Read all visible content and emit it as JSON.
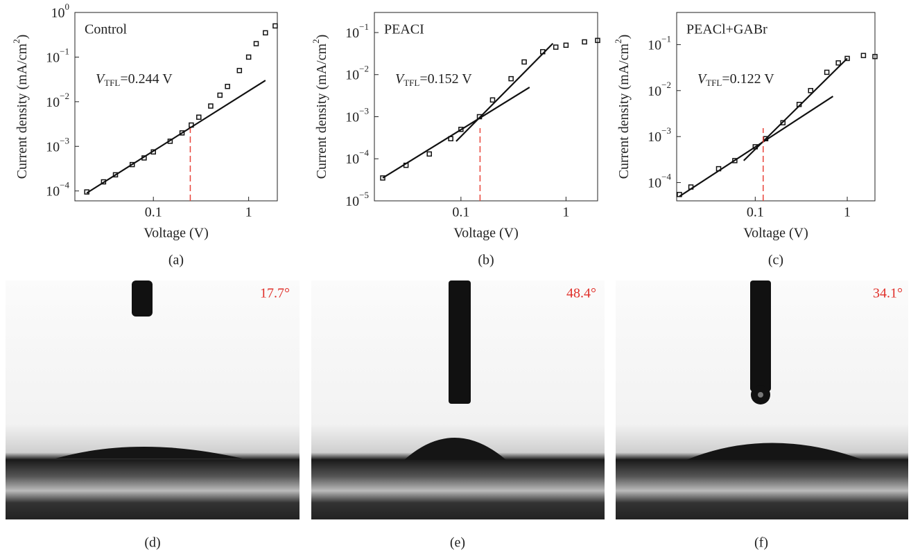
{
  "chart_data": [
    {
      "type": "scatter",
      "title": "Control",
      "log_x": true,
      "log_y": true,
      "xlabel": "Voltage (V)",
      "ylabel": [
        "Current density (mA/cm",
        "2",
        ")"
      ],
      "panel": "(a)",
      "annotation": {
        "symbol": "V",
        "sub": "TFL",
        "text": "=0.244 V"
      },
      "vtfl": 0.244,
      "vtfl_color": "#e8443a",
      "xlim": [
        0.015,
        2
      ],
      "ylim": [
        6e-05,
        1
      ],
      "xticks": [
        0.1,
        1
      ],
      "yticks": [
        {
          "value": 0.0001,
          "label": [
            "10",
            "−4"
          ]
        },
        {
          "value": 0.001,
          "label": [
            "10",
            "−3"
          ]
        },
        {
          "value": 0.01,
          "label": [
            "10",
            "−2"
          ]
        },
        {
          "value": 0.1,
          "label": [
            "10",
            "−1"
          ]
        },
        {
          "value": 1,
          "label": [
            "10",
            "0"
          ]
        }
      ],
      "series": [
        {
          "style": "markers",
          "color": "#111",
          "x": [
            0.02,
            0.03,
            0.04,
            0.06,
            0.08,
            0.1,
            0.15,
            0.2,
            0.25,
            0.3,
            0.4,
            0.5,
            0.6,
            0.8,
            1,
            1.2,
            1.5,
            1.9
          ],
          "values": [
            9.5e-05,
            0.00016,
            0.00023,
            0.00039,
            0.00055,
            0.00075,
            0.0013,
            0.002,
            0.003,
            0.0045,
            0.008,
            0.014,
            0.022,
            0.05,
            0.1,
            0.2,
            0.35,
            0.5
          ]
        },
        {
          "style": "line",
          "color": "#111",
          "x": [
            0.02,
            1.5
          ],
          "values": [
            9e-05,
            0.03
          ]
        }
      ]
    },
    {
      "type": "scatter",
      "title": "PEACI",
      "log_x": true,
      "log_y": true,
      "xlabel": "Voltage (V)",
      "ylabel": [
        "Current density (mA/cm",
        "2",
        ")"
      ],
      "panel": "(b)",
      "annotation": {
        "symbol": "V",
        "sub": "TFL",
        "text": "=0.152 V"
      },
      "vtfl": 0.152,
      "vtfl_color": "#e8443a",
      "xlim": [
        0.015,
        2
      ],
      "ylim": [
        1e-05,
        0.3
      ],
      "xticks": [
        0.1,
        1
      ],
      "yticks": [
        {
          "value": 1e-05,
          "label": [
            "10",
            "−5"
          ]
        },
        {
          "value": 0.0001,
          "label": [
            "10",
            "−4"
          ]
        },
        {
          "value": 0.001,
          "label": [
            "10",
            "−3"
          ]
        },
        {
          "value": 0.01,
          "label": [
            "10",
            "−2"
          ]
        },
        {
          "value": 0.1,
          "label": [
            "10",
            "−1"
          ]
        }
      ],
      "series": [
        {
          "style": "markers",
          "color": "#111",
          "x": [
            0.018,
            0.03,
            0.05,
            0.08,
            0.1,
            0.15,
            0.2,
            0.3,
            0.4,
            0.6,
            0.8,
            1,
            1.5,
            2
          ],
          "values": [
            3.5e-05,
            7e-05,
            0.00013,
            0.0003,
            0.0005,
            0.001,
            0.0025,
            0.008,
            0.02,
            0.035,
            0.045,
            0.05,
            0.06,
            0.065
          ]
        },
        {
          "style": "line",
          "color": "#111",
          "x": [
            0.018,
            0.45
          ],
          "values": [
            3.5e-05,
            0.005
          ]
        },
        {
          "style": "line",
          "color": "#111",
          "x": [
            0.09,
            0.75
          ],
          "values": [
            0.00026,
            0.055
          ]
        }
      ]
    },
    {
      "type": "scatter",
      "title": "PEACl+GABr",
      "log_x": true,
      "log_y": true,
      "xlabel": "Voltage (V)",
      "ylabel": [
        "Current density (mA/cm",
        "2",
        ")"
      ],
      "panel": "(c)",
      "annotation": {
        "symbol": "V",
        "sub": "TFL",
        "text": "=0.122 V"
      },
      "vtfl": 0.122,
      "vtfl_color": "#e8443a",
      "xlim": [
        0.014,
        2
      ],
      "ylim": [
        4e-05,
        0.5
      ],
      "xticks": [
        0.1,
        1
      ],
      "yticks": [
        {
          "value": 0.0001,
          "label": [
            "10",
            "−4"
          ]
        },
        {
          "value": 0.001,
          "label": [
            "10",
            "−3"
          ]
        },
        {
          "value": 0.01,
          "label": [
            "10",
            "−2"
          ]
        },
        {
          "value": 0.1,
          "label": [
            "10",
            "−1"
          ]
        }
      ],
      "series": [
        {
          "style": "markers",
          "color": "#111",
          "x": [
            0.015,
            0.02,
            0.04,
            0.06,
            0.1,
            0.13,
            0.2,
            0.3,
            0.4,
            0.6,
            0.8,
            1,
            1.5,
            2
          ],
          "values": [
            5.5e-05,
            8e-05,
            0.0002,
            0.0003,
            0.0006,
            0.0009,
            0.002,
            0.005,
            0.01,
            0.025,
            0.04,
            0.05,
            0.058,
            0.055
          ]
        },
        {
          "style": "line",
          "color": "#111",
          "x": [
            0.015,
            0.7
          ],
          "values": [
            5e-05,
            0.0075
          ]
        },
        {
          "style": "line",
          "color": "#111",
          "x": [
            0.075,
            1
          ],
          "values": [
            0.0003,
            0.05
          ]
        }
      ]
    }
  ],
  "photos": [
    {
      "angle": "17.7°",
      "label": "(d)"
    },
    {
      "angle": "48.4°",
      "label": "(e)"
    },
    {
      "angle": "34.1°",
      "label": "(f)"
    }
  ]
}
